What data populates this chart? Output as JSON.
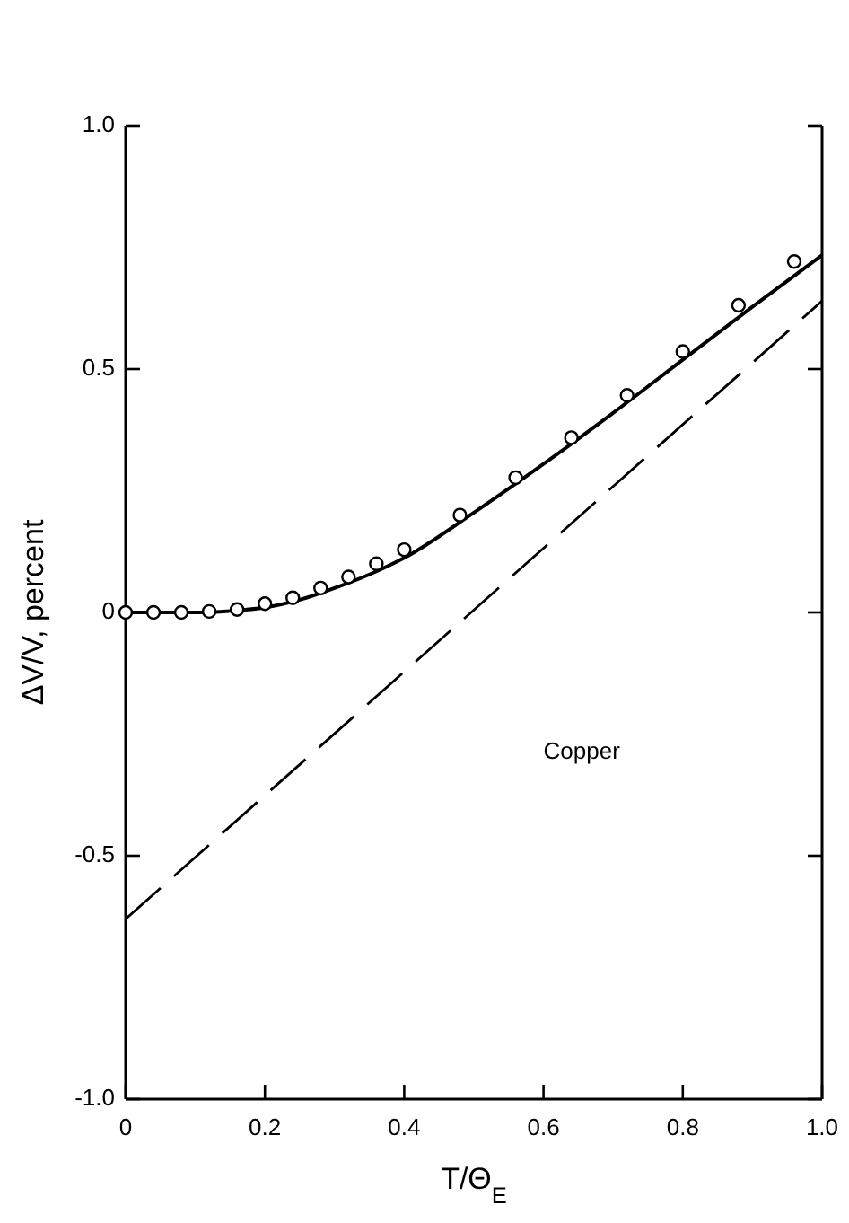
{
  "chart_data": {
    "type": "line",
    "xlabel": "T/Θ$_{E}$",
    "ylabel": "ΔV/V, percent",
    "annotations": [
      "Copper"
    ],
    "xlim": [
      0,
      1
    ],
    "ylim": [
      -1,
      1
    ],
    "xticks": [
      0,
      0.2,
      0.4,
      0.6,
      0.8,
      {
        "value": 1,
        "label": "1.0"
      }
    ],
    "yticks": [
      {
        "value": -1,
        "label": "-1.0"
      },
      -0.5,
      0,
      0.5,
      {
        "value": 1,
        "label": "1.0"
      }
    ],
    "grid": false,
    "series": [
      {
        "type": "scatter",
        "marker": "circle",
        "color": "#000000",
        "x": [
          0,
          0.04,
          0.08,
          0.12,
          0.16,
          0.2,
          0.24,
          0.28,
          0.32,
          0.36,
          0.4,
          0.48,
          0.56,
          0.64,
          0.72,
          0.8,
          0.88,
          0.96
        ],
        "values": [
          0,
          0,
          0,
          0.002,
          0.006,
          0.018,
          0.03,
          0.05,
          0.073,
          0.1,
          0.129,
          0.2,
          0.277,
          0.359,
          0.446,
          0.536,
          0.631,
          0.721
        ]
      },
      {
        "line_style": "solid",
        "color": "#000000",
        "x": [
          0,
          0.1,
          0.15,
          0.2,
          0.25,
          0.3,
          0.35,
          0.4,
          0.5,
          0.6,
          0.7,
          0.8,
          0.9,
          1
        ],
        "values": [
          0,
          0,
          0.003,
          0.01,
          0.026,
          0.05,
          0.078,
          0.112,
          0.205,
          0.305,
          0.41,
          0.519,
          0.628,
          0.734
        ]
      },
      {
        "type": "line",
        "line_style": "dashed",
        "color": "#000000",
        "x": [
          0,
          1
        ],
        "values": [
          -0.63,
          0.64
        ]
      }
    ]
  }
}
